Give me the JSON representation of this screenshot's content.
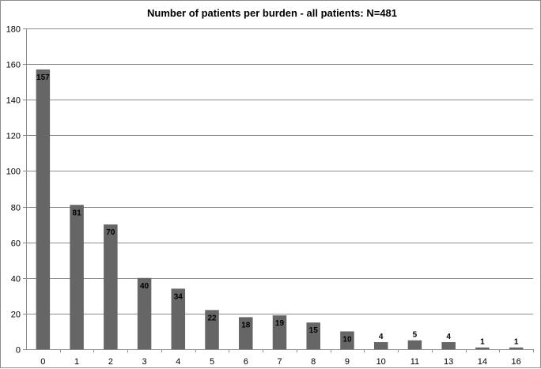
{
  "chart_data": {
    "type": "bar",
    "title": "Number of patients per burden - all patients: N=481",
    "xlabel": "",
    "ylabel": "",
    "categories": [
      "0",
      "1",
      "2",
      "3",
      "4",
      "5",
      "6",
      "7",
      "8",
      "9",
      "10",
      "11",
      "13",
      "14",
      "16"
    ],
    "values": [
      157,
      81,
      70,
      40,
      34,
      22,
      18,
      19,
      15,
      10,
      4,
      5,
      4,
      1,
      1
    ],
    "data_labels": [
      "157",
      "81",
      "70",
      "40",
      "34",
      "22",
      "18",
      "19",
      "15",
      "10",
      "4",
      "5",
      "4",
      "1",
      "1"
    ],
    "ylim": [
      0,
      180
    ],
    "yticks": [
      0,
      20,
      40,
      60,
      80,
      100,
      120,
      140,
      160,
      180
    ],
    "grid": "horizontal",
    "legend": "none",
    "bar_color": "#666666",
    "grid_color": "#8c8c8c"
  }
}
